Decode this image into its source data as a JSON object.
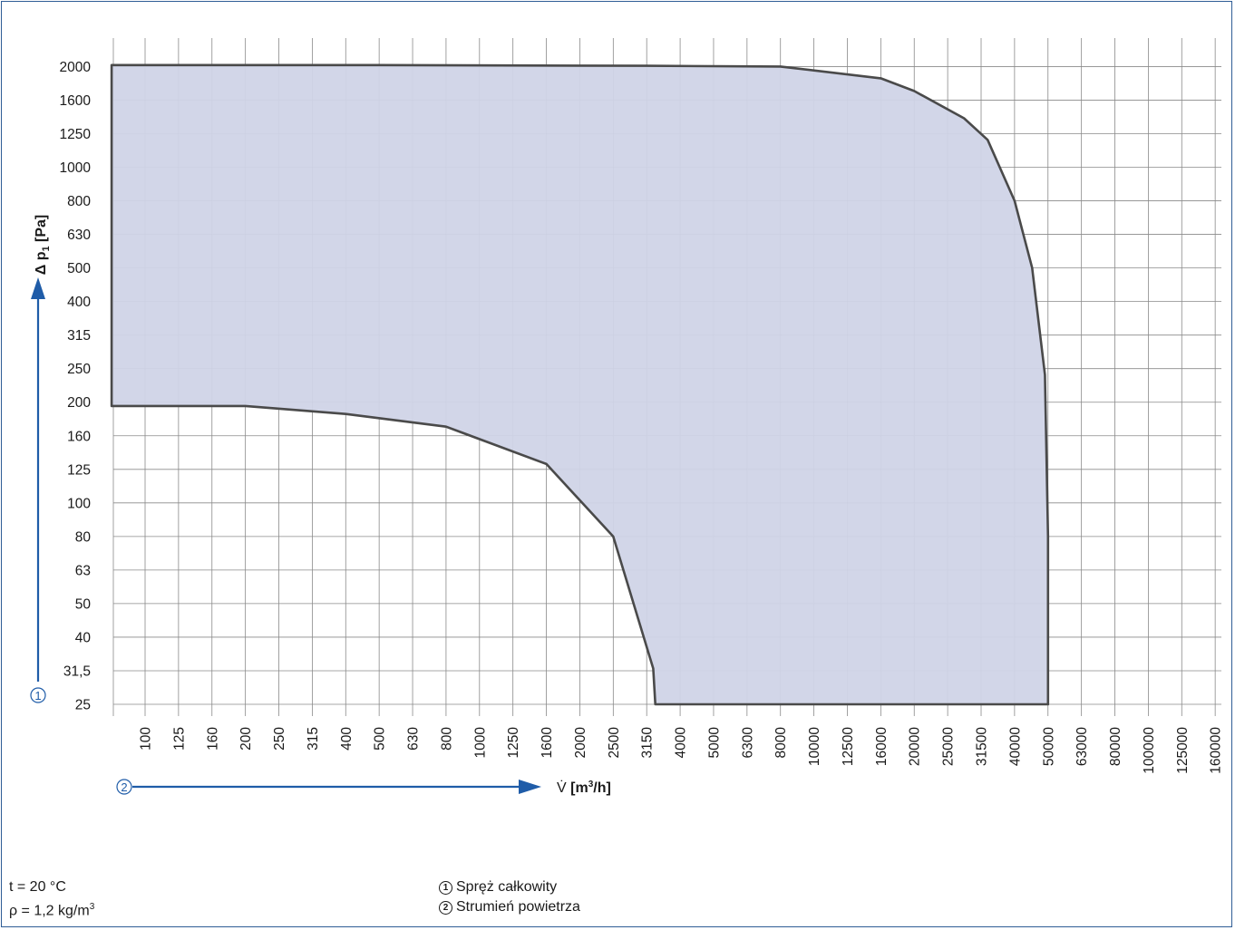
{
  "chart_data": {
    "type": "area",
    "title": "",
    "xlabel": "V̇ [m3/h]",
    "ylabel": "Δ p1 [Pa]",
    "x_scale": "log",
    "y_scale": "log",
    "x_ticks": [
      "100",
      "125",
      "160",
      "200",
      "250",
      "315",
      "400",
      "500",
      "630",
      "800",
      "1000",
      "1250",
      "1600",
      "2000",
      "2500",
      "3150",
      "4000",
      "5000",
      "6300",
      "8000",
      "10000",
      "12500",
      "16000",
      "20000",
      "25000",
      "31500",
      "40000",
      "50000",
      "63000",
      "80000",
      "100000",
      "125000",
      "160000"
    ],
    "y_ticks": [
      "25",
      "31,5",
      "40",
      "50",
      "63",
      "80",
      "100",
      "125",
      "160",
      "200",
      "250",
      "315",
      "400",
      "500",
      "630",
      "800",
      "1000",
      "1250",
      "1600",
      "2000"
    ],
    "xlim": [
      80,
      160000
    ],
    "ylim": [
      25,
      2500
    ],
    "grid": true,
    "fill_color": "#d0d4e7",
    "line_color": "#4a4a4a",
    "series": [
      {
        "boundary_x": [
          80,
          100,
          160,
          200,
          400,
          800,
          1600,
          2500,
          3300,
          3350,
          50000,
          50000,
          49000,
          45000,
          40000,
          33000,
          28000,
          20000,
          16000,
          8000,
          3150,
          500,
          80
        ],
        "boundary_y": [
          195,
          195,
          195,
          195,
          185,
          170,
          130,
          80,
          32,
          25,
          25,
          80,
          240,
          500,
          800,
          1200,
          1400,
          1700,
          1850,
          2000,
          2010,
          2020,
          2020
        ]
      }
    ]
  },
  "markers": {
    "pressure_marker": "1",
    "flow_marker": "2"
  },
  "notes": {
    "temperature": "t = 20 °C",
    "density_prefix": "ρ = 1,2 kg/m",
    "density_exp": "3",
    "legend_1": "Spręż całkowity",
    "legend_2": "Strumień powietrza"
  },
  "colors": {
    "accent": "#1f5ca8",
    "grid": "#8a8a8a",
    "frame": "#2f5d96"
  }
}
